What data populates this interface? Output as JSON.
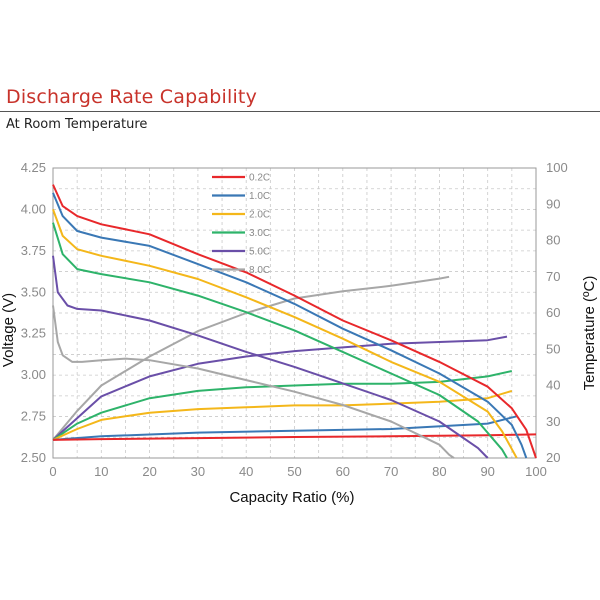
{
  "header": {
    "title": "Discharge Rate Capability",
    "subtitle": "At Room Temperature"
  },
  "chart_data": {
    "type": "line",
    "xlabel": "Capacity Ratio (%)",
    "ylabel": "Voltage (V)",
    "y2label": "Temperature (ºC)",
    "xlim": [
      0,
      100
    ],
    "ylim": [
      2.5,
      4.25
    ],
    "y2lim": [
      20,
      100
    ],
    "x_ticks": [
      "0",
      "10",
      "20",
      "30",
      "40",
      "50",
      "60",
      "70",
      "80",
      "90",
      "100"
    ],
    "y_ticks": [
      "2.50",
      "2.75",
      "3.00",
      "3.25",
      "3.50",
      "3.75",
      "4.00",
      "4.25"
    ],
    "y2_ticks": [
      "20",
      "30",
      "40",
      "50",
      "60",
      "70",
      "80",
      "90",
      "100"
    ],
    "grid": true,
    "legend_position": "top-center",
    "series": [
      {
        "name": "0.2C",
        "color": "#e8282b",
        "voltage": [
          [
            0,
            4.15
          ],
          [
            2,
            4.02
          ],
          [
            5,
            3.96
          ],
          [
            10,
            3.91
          ],
          [
            20,
            3.85
          ],
          [
            30,
            3.73
          ],
          [
            40,
            3.62
          ],
          [
            50,
            3.48
          ],
          [
            60,
            3.33
          ],
          [
            70,
            3.21
          ],
          [
            80,
            3.08
          ],
          [
            90,
            2.93
          ],
          [
            95,
            2.8
          ],
          [
            98,
            2.67
          ],
          [
            100,
            2.5
          ]
        ],
        "temperature": [
          [
            0,
            25
          ],
          [
            10,
            25.2
          ],
          [
            30,
            25.5
          ],
          [
            50,
            25.8
          ],
          [
            70,
            26
          ],
          [
            90,
            26.3
          ],
          [
            100,
            26.5
          ]
        ]
      },
      {
        "name": "1.0C",
        "color": "#3a78b5",
        "voltage": [
          [
            0,
            4.1
          ],
          [
            2,
            3.96
          ],
          [
            5,
            3.87
          ],
          [
            10,
            3.83
          ],
          [
            20,
            3.78
          ],
          [
            30,
            3.67
          ],
          [
            40,
            3.56
          ],
          [
            50,
            3.43
          ],
          [
            60,
            3.28
          ],
          [
            70,
            3.15
          ],
          [
            80,
            3.01
          ],
          [
            90,
            2.84
          ],
          [
            95,
            2.7
          ],
          [
            97,
            2.58
          ],
          [
            98,
            2.5
          ]
        ],
        "temperature": [
          [
            0,
            25
          ],
          [
            10,
            26
          ],
          [
            30,
            27
          ],
          [
            50,
            27.5
          ],
          [
            70,
            28
          ],
          [
            90,
            29.5
          ],
          [
            96,
            31.5
          ]
        ]
      },
      {
        "name": "2.0C",
        "color": "#f4b71a",
        "voltage": [
          [
            0,
            4.0
          ],
          [
            2,
            3.84
          ],
          [
            5,
            3.76
          ],
          [
            10,
            3.72
          ],
          [
            20,
            3.66
          ],
          [
            30,
            3.58
          ],
          [
            40,
            3.47
          ],
          [
            50,
            3.35
          ],
          [
            60,
            3.22
          ],
          [
            70,
            3.08
          ],
          [
            80,
            2.96
          ],
          [
            90,
            2.78
          ],
          [
            93,
            2.66
          ],
          [
            96,
            2.5
          ]
        ],
        "temperature": [
          [
            0,
            25
          ],
          [
            5,
            28
          ],
          [
            10,
            30.5
          ],
          [
            20,
            32.5
          ],
          [
            30,
            33.5
          ],
          [
            40,
            34
          ],
          [
            50,
            34.5
          ],
          [
            60,
            34.5
          ],
          [
            70,
            35
          ],
          [
            80,
            35.5
          ],
          [
            90,
            36.5
          ],
          [
            95,
            38.5
          ]
        ]
      },
      {
        "name": "3.0C",
        "color": "#2eb36a",
        "voltage": [
          [
            0,
            3.92
          ],
          [
            2,
            3.73
          ],
          [
            5,
            3.64
          ],
          [
            10,
            3.61
          ],
          [
            20,
            3.56
          ],
          [
            30,
            3.48
          ],
          [
            40,
            3.38
          ],
          [
            50,
            3.27
          ],
          [
            60,
            3.14
          ],
          [
            70,
            3.01
          ],
          [
            80,
            2.88
          ],
          [
            88,
            2.72
          ],
          [
            93,
            2.55
          ],
          [
            94,
            2.5
          ]
        ],
        "temperature": [
          [
            0,
            25
          ],
          [
            5,
            29.5
          ],
          [
            10,
            32.5
          ],
          [
            20,
            36.5
          ],
          [
            30,
            38.5
          ],
          [
            40,
            39.5
          ],
          [
            50,
            40
          ],
          [
            60,
            40.5
          ],
          [
            70,
            40.5
          ],
          [
            80,
            41
          ],
          [
            90,
            42.5
          ],
          [
            95,
            44
          ]
        ]
      },
      {
        "name": "5.0C",
        "color": "#6a4fa8",
        "voltage": [
          [
            0,
            3.72
          ],
          [
            1,
            3.5
          ],
          [
            3,
            3.42
          ],
          [
            5,
            3.4
          ],
          [
            10,
            3.39
          ],
          [
            20,
            3.33
          ],
          [
            30,
            3.24
          ],
          [
            40,
            3.14
          ],
          [
            50,
            3.05
          ],
          [
            60,
            2.95
          ],
          [
            70,
            2.85
          ],
          [
            80,
            2.72
          ],
          [
            88,
            2.56
          ],
          [
            90,
            2.5
          ]
        ],
        "temperature": [
          [
            0,
            25
          ],
          [
            5,
            31
          ],
          [
            10,
            37
          ],
          [
            20,
            42.5
          ],
          [
            30,
            46
          ],
          [
            40,
            48
          ],
          [
            50,
            49.5
          ],
          [
            60,
            50.5
          ],
          [
            70,
            51.5
          ],
          [
            80,
            52
          ],
          [
            90,
            52.5
          ],
          [
            94,
            53.5
          ]
        ]
      },
      {
        "name": "8.0C",
        "color": "#a7a7a7",
        "voltage": [
          [
            0,
            3.42
          ],
          [
            1,
            3.2
          ],
          [
            2,
            3.12
          ],
          [
            4,
            3.08
          ],
          [
            6,
            3.08
          ],
          [
            10,
            3.09
          ],
          [
            15,
            3.1
          ],
          [
            20,
            3.09
          ],
          [
            30,
            3.04
          ],
          [
            40,
            2.97
          ],
          [
            50,
            2.9
          ],
          [
            60,
            2.82
          ],
          [
            70,
            2.72
          ],
          [
            80,
            2.58
          ],
          [
            82,
            2.52
          ],
          [
            83,
            2.5
          ]
        ],
        "temperature": [
          [
            0,
            25
          ],
          [
            5,
            33
          ],
          [
            10,
            40
          ],
          [
            20,
            48
          ],
          [
            30,
            55
          ],
          [
            40,
            60
          ],
          [
            50,
            64
          ],
          [
            60,
            66
          ],
          [
            70,
            67.5
          ],
          [
            80,
            69.5
          ],
          [
            82,
            70
          ]
        ]
      }
    ]
  }
}
